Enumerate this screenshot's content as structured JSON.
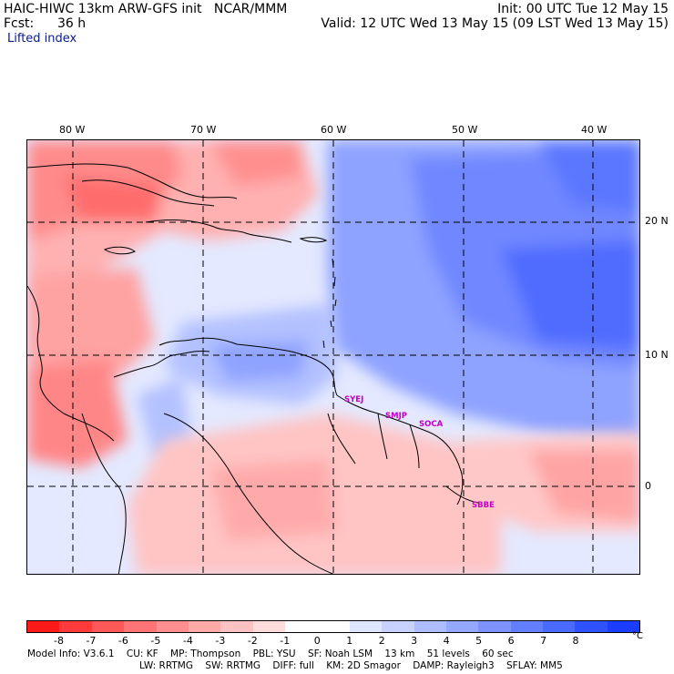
{
  "header": {
    "title_line": "HAIC-HIWC 13km ARW-GFS init   NCAR/MMM",
    "init": "Init: 00 UTC Tue 12 May 15",
    "fcst_label": "Fcst:",
    "fcst_value": "36 h",
    "valid": "Valid: 12 UTC Wed 13 May 15 (09 LST Wed 13 May 15)",
    "field_name": "Lifted index"
  },
  "map": {
    "lon_labels": [
      "80 W",
      "70 W",
      "60 W",
      "50 W",
      "40 W"
    ],
    "lat_labels": [
      "20 N",
      "10 N",
      "0"
    ],
    "cities": [
      "SYEJ",
      "SMJP",
      "SOCA",
      "SBBE"
    ]
  },
  "legend": {
    "colors": [
      "#ff1a1a",
      "#ff3a3a",
      "#ff5858",
      "#ff7474",
      "#ff8f8f",
      "#ffa9a9",
      "#ffc2c2",
      "#ffdcdc",
      "#ffffff",
      "#ffffff",
      "#dfe6ff",
      "#c7d2ff",
      "#aebdff",
      "#95a8ff",
      "#7c93ff",
      "#637eff",
      "#4a69ff",
      "#2f52ff",
      "#1a3dff"
    ],
    "ticks": [
      "-8",
      "-7",
      "-6",
      "-5",
      "-4",
      "-3",
      "-2",
      "-1",
      "0",
      "1",
      "2",
      "3",
      "4",
      "5",
      "6",
      "7",
      "8"
    ],
    "unit": "°C"
  },
  "footer": {
    "line1_items": [
      "Model Info: V3.6.1",
      "CU: KF",
      "MP: Thompson",
      "PBL: YSU",
      "SF: Noah LSM",
      "13 km",
      "51 levels",
      "60 sec"
    ],
    "line2_items": [
      "LW: RRTMG",
      "SW: RRTMG",
      "DIFF: full",
      "KM: 2D Smagor",
      "DAMP: Rayleigh3",
      "SFLAY: MM5"
    ]
  },
  "colors": {
    "positive_accent": "#3b55ff",
    "negative_accent": "#ff4a4a",
    "grid": "#000000",
    "city_label": "#c400c4"
  }
}
